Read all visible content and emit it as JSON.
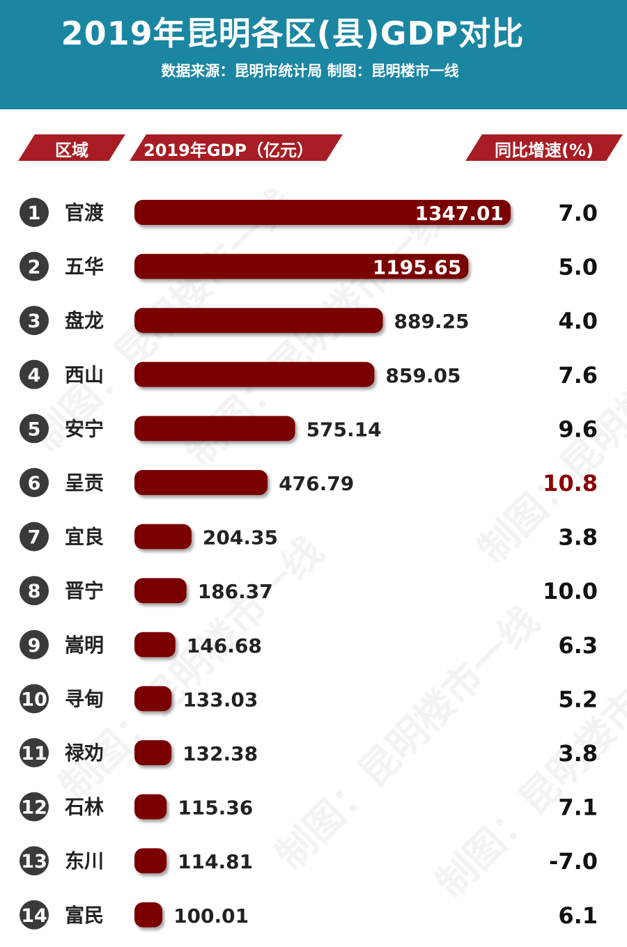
{
  "header": {
    "title": "2019年昆明各区(县)GDP对比",
    "source": "数据来源：昆明市统计局  制图：昆明楼市一线"
  },
  "columns": {
    "region": "区域",
    "gdp": "2019年GDP（亿元）",
    "growth": "同比增速(%)"
  },
  "watermark": "制图：昆明楼市一线",
  "colors": {
    "header_bg": "#1a86a2",
    "bar": "#7a0000",
    "label_red": "#a81d24",
    "rank_circle": "#3a3a3a",
    "highlight": "#8b0000"
  },
  "chart_data": {
    "type": "bar",
    "orientation": "horizontal",
    "title": "2019年昆明各区(县)GDP对比",
    "ylabel": "2019年GDP（亿元）",
    "highlight_max_growth": true,
    "categories": [
      "官渡",
      "五华",
      "盘龙",
      "西山",
      "安宁",
      "呈贡",
      "宜良",
      "晋宁",
      "嵩明",
      "寻甸",
      "禄劝",
      "石林",
      "东川",
      "富民"
    ],
    "series": [
      {
        "name": "2019年GDP（亿元）",
        "values": [
          1347.01,
          1195.65,
          889.25,
          859.05,
          575.14,
          476.79,
          204.35,
          186.37,
          146.68,
          133.03,
          132.38,
          115.36,
          114.81,
          100.01
        ]
      },
      {
        "name": "同比增速(%)",
        "values": [
          "7.0",
          "5.0",
          "4.0",
          "7.6",
          "9.6",
          "10.8",
          "3.8",
          "10.0",
          "6.3",
          "5.2",
          "3.8",
          "7.1",
          "-7.0",
          "6.1"
        ]
      }
    ]
  }
}
